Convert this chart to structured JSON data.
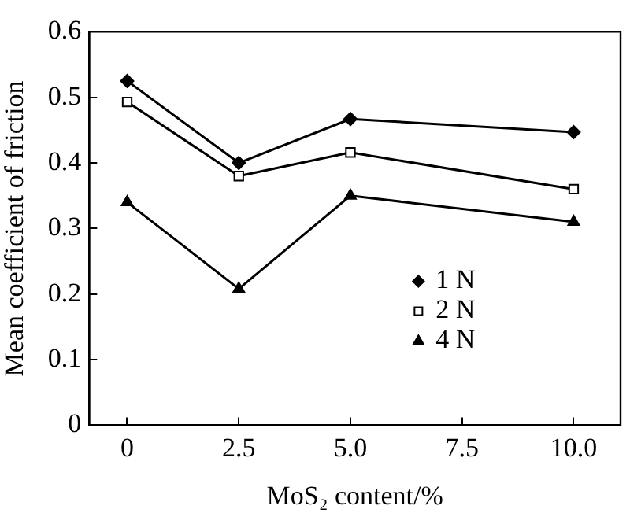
{
  "chart_data": {
    "type": "line",
    "xlabel": "MoS₂ content/%",
    "ylabel": "Mean coefficient of friction",
    "x": [
      0,
      2.5,
      5,
      10
    ],
    "series": [
      {
        "name": "1 N",
        "color": "#000000",
        "marker": "diamond",
        "values": [
          0.525,
          0.4,
          0.467,
          0.447
        ]
      },
      {
        "name": "2 N",
        "color": "#000000",
        "marker": "square",
        "values": [
          0.493,
          0.38,
          0.416,
          0.36
        ]
      },
      {
        "name": "4 N",
        "color": "#000000",
        "marker": "triangle",
        "values": [
          0.34,
          0.208,
          0.35,
          0.31
        ]
      }
    ],
    "xlim": [
      -0.85,
      11.05
    ],
    "xticks": [
      0,
      {
        "value": 2.5,
        "label": "2.5"
      },
      {
        "value": 5,
        "label": "5.0"
      },
      {
        "value": 7.5,
        "label": "7.5"
      },
      {
        "value": 10,
        "label": "10.0"
      }
    ],
    "ylim": [
      0,
      0.6
    ],
    "yticks": [
      0,
      0.1,
      0.2,
      0.3,
      0.4,
      0.5,
      0.6
    ],
    "grid": false,
    "legend": "bottom right",
    "line_style": "solid"
  }
}
